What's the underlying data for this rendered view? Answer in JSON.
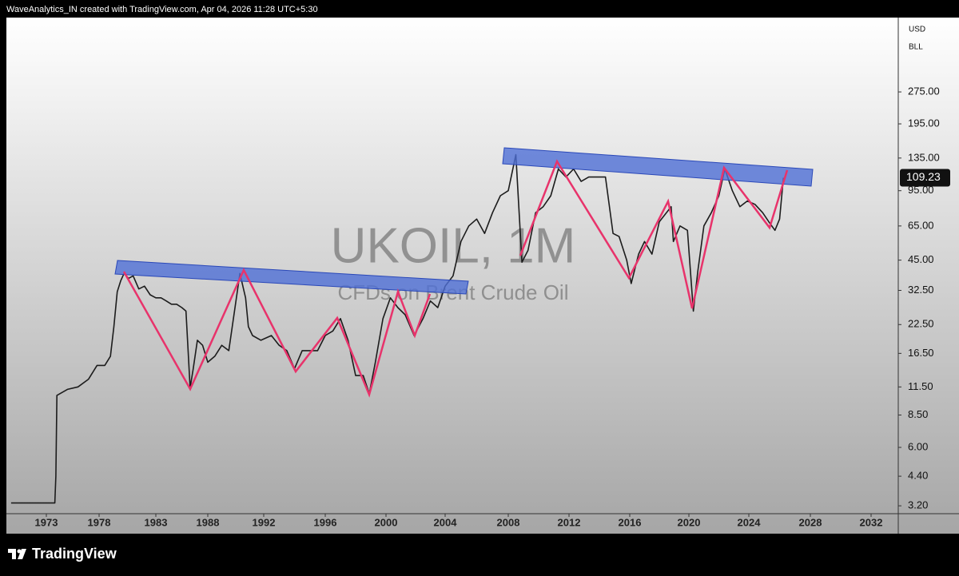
{
  "chart_data": {
    "type": "line",
    "header": "WaveAnalytics_IN created with TradingView.com, Apr 04, 2026 11:28 UTC+5:30",
    "title": "UKOIL, 1M",
    "subtitle": "CFDs on Brent Crude Oil",
    "currency": "USD",
    "unit": "BLL",
    "brand": "TradingView",
    "last_price": 109.23,
    "log_scale": true,
    "grid": false,
    "color": "#1c1c1c",
    "x": [
      1970,
      1973.8,
      1973.9,
      1974.0,
      1975,
      1976,
      1977,
      1977.8,
      1978.5,
      1979.0,
      1979.3,
      1979.6,
      1979.9,
      1980.2,
      1980.6,
      1981,
      1981.5,
      1982,
      1982.5,
      1983,
      1983.5,
      1984,
      1984.5,
      1985,
      1985.5,
      1985.9,
      1986.3,
      1986.6,
      1987,
      1987.5,
      1988,
      1988.5,
      1989,
      1989.5,
      1990.3,
      1990.7,
      1990.9,
      1991.2,
      1991.8,
      1992.5,
      1993,
      1993.5,
      1994,
      1994.5,
      1995,
      1995.5,
      1996,
      1996.5,
      1997,
      1997.5,
      1998,
      1998.5,
      1998.9,
      1999.3,
      1999.8,
      2000.3,
      2000.8,
      2001.3,
      2001.9,
      2002.5,
      2003,
      2003.5,
      2004,
      2004.5,
      2005,
      2005.5,
      2006,
      2006.5,
      2007,
      2007.5,
      2008,
      2008.5,
      2008.9,
      2009.3,
      2009.8,
      2010.3,
      2010.8,
      2011.3,
      2011.8,
      2012.3,
      2012.8,
      2013.3,
      2013.8,
      2014.4,
      2014.9,
      2015.3,
      2015.8,
      2016.1,
      2016.6,
      2017,
      2017.5,
      2018,
      2018.8,
      2018.95,
      2019.4,
      2019.9,
      2020.3,
      2020.6,
      2021,
      2021.5,
      2022,
      2022.4,
      2022.9,
      2023.4,
      2023.9,
      2024.4,
      2024.9,
      2025.3,
      2025.7,
      2026.0,
      2026.25
    ],
    "values": [
      3.3,
      3.3,
      4.4,
      10.5,
      11.2,
      11.5,
      12.5,
      14.5,
      14.5,
      16,
      22,
      32,
      36,
      39,
      37,
      38,
      33,
      34,
      31,
      30,
      30,
      29,
      28,
      28,
      27,
      26,
      11.4,
      14,
      19,
      18,
      15,
      16,
      18,
      17,
      39,
      30,
      22,
      20,
      19,
      20,
      18,
      17,
      14,
      17,
      17,
      17,
      20,
      21,
      24,
      19,
      13,
      13,
      10.7,
      15,
      24,
      30,
      27,
      25,
      20,
      24,
      29,
      27,
      34,
      38,
      55,
      65,
      70,
      60,
      75,
      90,
      95,
      140,
      44,
      50,
      75,
      80,
      90,
      120,
      110,
      120,
      105,
      110,
      110,
      110,
      60,
      58,
      45,
      35,
      48,
      55,
      48,
      68,
      80,
      55,
      65,
      62,
      26,
      40,
      65,
      75,
      90,
      120,
      95,
      80,
      85,
      82,
      75,
      68,
      62,
      70,
      109.23
    ],
    "xlim": [
      1969.6,
      2033.7
    ],
    "xticks": [
      1973,
      1978,
      1983,
      1988,
      1992,
      1996,
      2000,
      2004,
      2008,
      2012,
      2016,
      2020,
      2024,
      2028,
      2032
    ],
    "ylim": [
      2.94,
      612
    ],
    "yticks": [
      {
        "value": 3.2,
        "label": "3.20"
      },
      {
        "value": 4.4,
        "label": "4.40"
      },
      {
        "value": 6,
        "label": "6.00"
      },
      {
        "value": 8.5,
        "label": "8.50"
      },
      {
        "value": 11.5,
        "label": "11.50"
      },
      {
        "value": 16.5,
        "label": "16.50"
      },
      {
        "value": 22.5,
        "label": "22.50"
      },
      {
        "value": 32.5,
        "label": "32.50"
      },
      {
        "value": 45,
        "label": "45.00"
      },
      {
        "value": 65,
        "label": "65.00"
      },
      {
        "value": 95,
        "label": "95.00"
      },
      {
        "value": 135,
        "label": "135.00"
      },
      {
        "value": 195,
        "label": "195.00"
      },
      {
        "value": 275,
        "label": "275.00"
      }
    ]
  }
}
